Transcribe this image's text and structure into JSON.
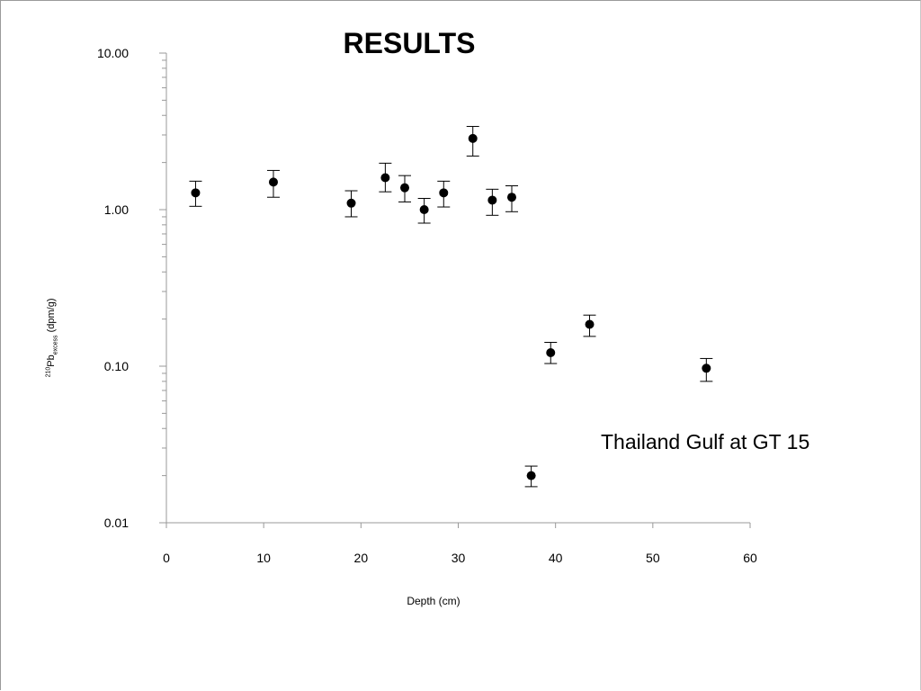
{
  "chart_data": {
    "type": "scatter",
    "title": "RESULTS",
    "xlabel": "Depth (cm)",
    "ylabel": {
      "sup": "210",
      "main": "Pb",
      "sub": "excess",
      "unit": "(dpm/g)"
    },
    "annotation": "Thailand Gulf at GT 15",
    "xlim": [
      0,
      60
    ],
    "ylim": [
      0.01,
      10
    ],
    "yscale": "log",
    "grid": false,
    "xticks": [
      0,
      10,
      20,
      30,
      40,
      50,
      60
    ],
    "xtick_labels": [
      "0",
      "10",
      "20",
      "30",
      "40",
      "50",
      "60"
    ],
    "yticks": [
      10,
      1,
      0.1,
      0.01
    ],
    "ytick_labels": [
      "10.00",
      "1.00",
      "0.10",
      "0.01"
    ],
    "points": [
      {
        "x": 3,
        "y": 1.28,
        "y_low": 1.05,
        "y_high": 1.52
      },
      {
        "x": 11,
        "y": 1.5,
        "y_low": 1.2,
        "y_high": 1.78
      },
      {
        "x": 19,
        "y": 1.1,
        "y_low": 0.9,
        "y_high": 1.32
      },
      {
        "x": 22.5,
        "y": 1.6,
        "y_low": 1.3,
        "y_high": 1.98
      },
      {
        "x": 24.5,
        "y": 1.38,
        "y_low": 1.12,
        "y_high": 1.65
      },
      {
        "x": 26.5,
        "y": 1.0,
        "y_low": 0.82,
        "y_high": 1.18
      },
      {
        "x": 28.5,
        "y": 1.28,
        "y_low": 1.04,
        "y_high": 1.52
      },
      {
        "x": 31.5,
        "y": 2.85,
        "y_low": 2.2,
        "y_high": 3.4
      },
      {
        "x": 33.5,
        "y": 1.15,
        "y_low": 0.92,
        "y_high": 1.35
      },
      {
        "x": 35.5,
        "y": 1.2,
        "y_low": 0.97,
        "y_high": 1.42
      },
      {
        "x": 37.5,
        "y": 0.02,
        "y_low": 0.017,
        "y_high": 0.023
      },
      {
        "x": 39.5,
        "y": 0.122,
        "y_low": 0.104,
        "y_high": 0.142
      },
      {
        "x": 43.5,
        "y": 0.185,
        "y_low": 0.155,
        "y_high": 0.212
      },
      {
        "x": 55.5,
        "y": 0.097,
        "y_low": 0.08,
        "y_high": 0.112
      }
    ]
  }
}
